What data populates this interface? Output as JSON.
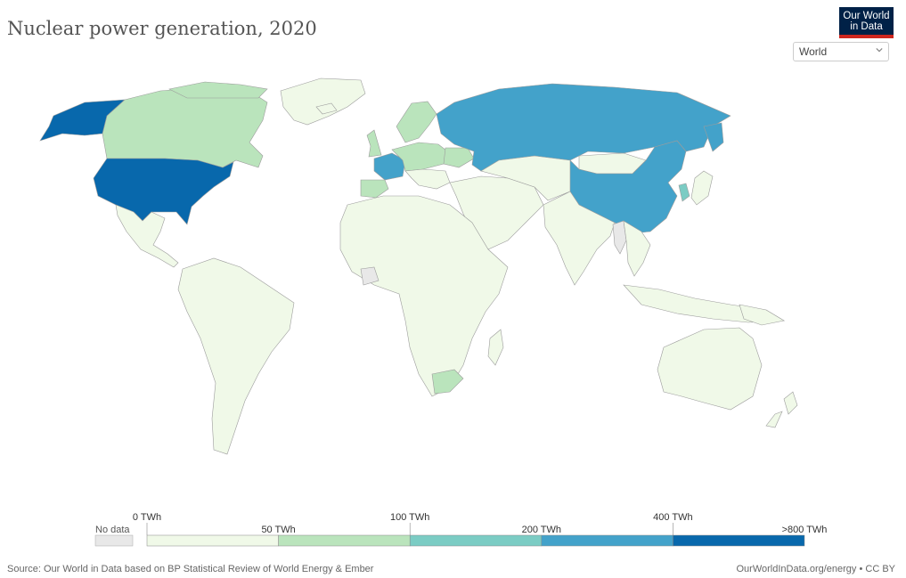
{
  "title": "Nuclear power generation, 2020",
  "logo": {
    "line1": "Our World",
    "line2": "in Data"
  },
  "region_select": {
    "value": "World"
  },
  "legend": {
    "no_data_label": "No data",
    "bins": [
      {
        "label_top": "0 TWh",
        "label_bottom": "50 TWh",
        "color": "#f0f9e8"
      },
      {
        "label_top": "",
        "label_bottom": "",
        "color": "#bae4bc"
      },
      {
        "label_top": "100 TWh",
        "label_bottom": "200 TWh",
        "color": "#7bccc4"
      },
      {
        "label_top": "",
        "label_bottom": "",
        "color": "#43a2ca"
      },
      {
        "label_top": "400 TWh",
        "label_bottom": ">800 TWh",
        "color": "#0868ac"
      }
    ],
    "no_data_color": "#e8e8e8"
  },
  "colors": {
    "level1": "#f0f9e8",
    "level2": "#bae4bc",
    "level3": "#7bccc4",
    "level4": "#43a2ca",
    "level5": "#0868ac",
    "ocean": "#ffffff",
    "border": "#7f7f7f"
  },
  "footer": {
    "source": "Source: Our World in Data based on BP Statistical Review of World Energy & Ember",
    "url": "OurWorldInData.org/energy • CC BY"
  }
}
